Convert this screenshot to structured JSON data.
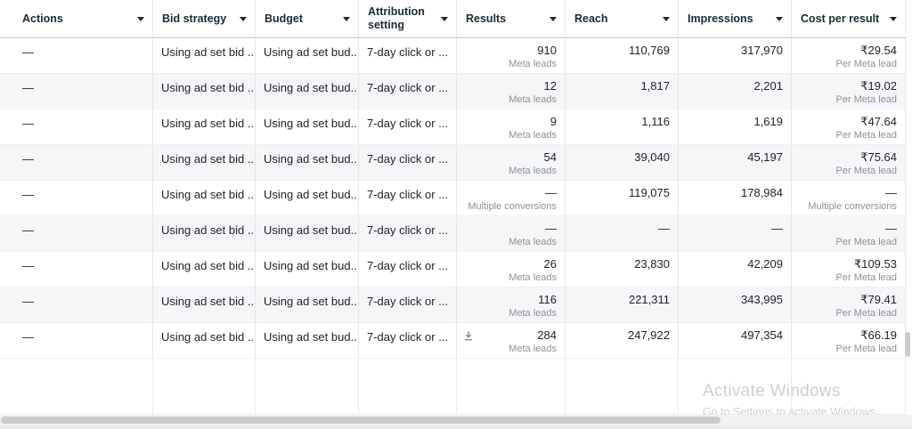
{
  "header": {
    "columns": [
      "Actions",
      "Bid strategy",
      "Budget",
      "Attribution setting",
      "Results",
      "Reach",
      "Impressions",
      "Cost per result"
    ]
  },
  "rows": [
    {
      "actions": "—",
      "bid_strategy": "Using ad set bid ...",
      "budget": "Using ad set bud...",
      "attribution_setting": "7-day click or ...",
      "results": "910",
      "results_sub": "Meta leads",
      "reach": "110,769",
      "impressions": "317,970",
      "cost_per_result": "₹29.54",
      "cost_sub": "Per Meta lead",
      "download_icon": false
    },
    {
      "actions": "—",
      "bid_strategy": "Using ad set bid ...",
      "budget": "Using ad set bud...",
      "attribution_setting": "7-day click or ...",
      "results": "12",
      "results_sub": "Meta leads",
      "reach": "1,817",
      "impressions": "2,201",
      "cost_per_result": "₹19.02",
      "cost_sub": "Per Meta lead",
      "download_icon": false
    },
    {
      "actions": "—",
      "bid_strategy": "Using ad set bid ...",
      "budget": "Using ad set bud...",
      "attribution_setting": "7-day click or ...",
      "results": "9",
      "results_sub": "Meta leads",
      "reach": "1,116",
      "impressions": "1,619",
      "cost_per_result": "₹47.64",
      "cost_sub": "Per Meta lead",
      "download_icon": false
    },
    {
      "actions": "—",
      "bid_strategy": "Using ad set bid ...",
      "budget": "Using ad set bud...",
      "attribution_setting": "7-day click or ...",
      "results": "54",
      "results_sub": "Meta leads",
      "reach": "39,040",
      "impressions": "45,197",
      "cost_per_result": "₹75.64",
      "cost_sub": "Per Meta lead",
      "download_icon": false
    },
    {
      "actions": "—",
      "bid_strategy": "Using ad set bid ...",
      "budget": "Using ad set bud...",
      "attribution_setting": "7-day click or ...",
      "results": "—",
      "results_sub": "Multiple conversions",
      "reach": "119,075",
      "impressions": "178,984",
      "cost_per_result": "—",
      "cost_sub": "Multiple conversions",
      "download_icon": false
    },
    {
      "actions": "—",
      "bid_strategy": "Using ad set bid ...",
      "budget": "Using ad set bud...",
      "attribution_setting": "7-day click or ...",
      "results": "—",
      "results_sub": "Meta leads",
      "reach": "—",
      "impressions": "—",
      "cost_per_result": "—",
      "cost_sub": "Per Meta lead",
      "download_icon": false
    },
    {
      "actions": "—",
      "bid_strategy": "Using ad set bid ...",
      "budget": "Using ad set bud...",
      "attribution_setting": "7-day click or ...",
      "results": "26",
      "results_sub": "Meta leads",
      "reach": "23,830",
      "impressions": "42,209",
      "cost_per_result": "₹109.53",
      "cost_sub": "Per Meta lead",
      "download_icon": false
    },
    {
      "actions": "—",
      "bid_strategy": "Using ad set bid ...",
      "budget": "Using ad set bud...",
      "attribution_setting": "7-day click or ...",
      "results": "116",
      "results_sub": "Meta leads",
      "reach": "221,311",
      "impressions": "343,995",
      "cost_per_result": "₹79.41",
      "cost_sub": "Per Meta lead",
      "download_icon": false
    },
    {
      "actions": "—",
      "bid_strategy": "Using ad set bid ...",
      "budget": "Using ad set bud...",
      "attribution_setting": "7-day click or ...",
      "results": "284",
      "results_sub": "Meta leads",
      "reach": "247,922",
      "impressions": "497,354",
      "cost_per_result": "₹66.19",
      "cost_sub": "Per Meta lead",
      "download_icon": true
    }
  ],
  "icons": {
    "sort_caret": "caret-down",
    "row_download": "download-arrow"
  },
  "watermark": {
    "title": "Activate Windows",
    "subtitle": "Go to Settings to activate Windows."
  },
  "colors": {
    "header_text": "#1c2b33",
    "primary_text": "#1d2129",
    "secondary_text": "#8c9196",
    "row_alt_bg": "#f5f6f8",
    "column_border": "#e4e6e9",
    "header_border": "#c3c6cb",
    "scrollbar_thumb": "#c9cbcd",
    "watermark_text": "#cdcfd1"
  }
}
